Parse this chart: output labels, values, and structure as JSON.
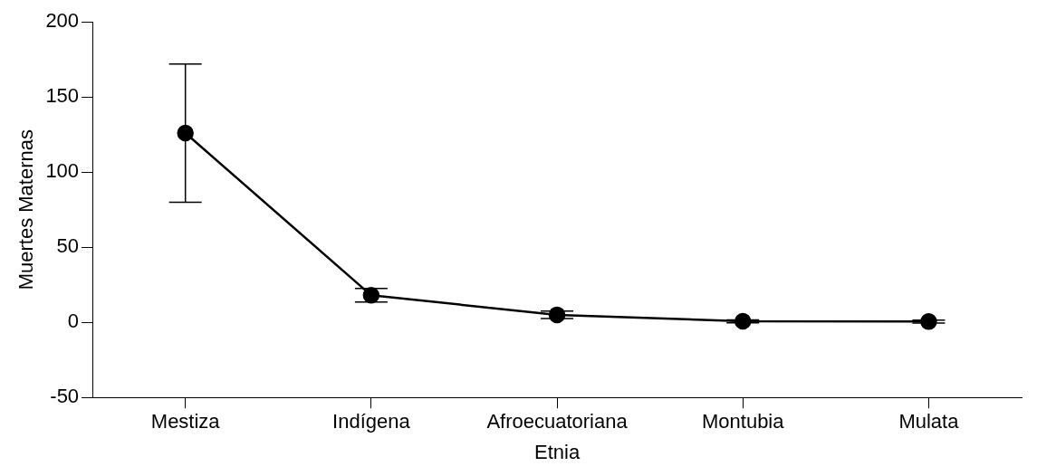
{
  "chart_data": {
    "type": "line",
    "xlabel": "Etnia",
    "ylabel": "Muertes Maternas",
    "categories": [
      "Mestiza",
      "Indígena",
      "Afroecuatoriana",
      "Montubia",
      "Mulata"
    ],
    "values": [
      126,
      18,
      5,
      0.7,
      0.5
    ],
    "errors": [
      46,
      4.5,
      2.5,
      1,
      1
    ],
    "color": "#000000",
    "marker": "circle",
    "line_style": "solid",
    "ylim": [
      -50,
      200
    ],
    "yticks": [
      -50,
      0,
      50,
      100,
      150,
      200
    ],
    "grid": false,
    "legend": false
  }
}
